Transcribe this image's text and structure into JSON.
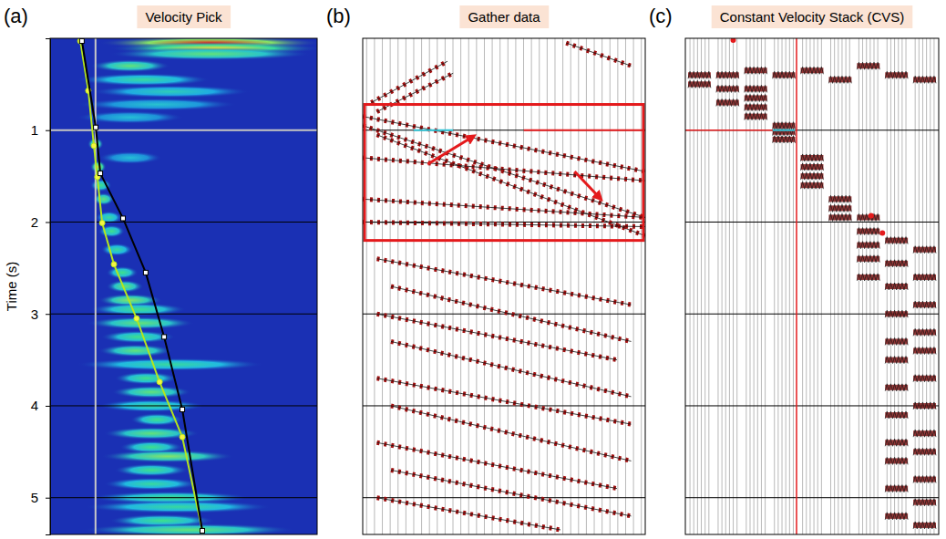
{
  "chart_data": [
    {
      "type": "heatmap",
      "panel_label": "(a)",
      "title": "Velocity Pick",
      "y_label": "Time (s)",
      "xlim": [
        0,
        1
      ],
      "ylim": [
        0,
        5.4
      ],
      "yticks": [
        1,
        2,
        3,
        4,
        5
      ],
      "tick_labels": "y",
      "grid": true,
      "semblance": {
        "time": [
          0.05,
          0.11,
          0.17,
          0.3,
          0.45,
          0.58,
          0.72,
          0.86,
          1.15,
          1.3,
          1.4,
          1.6,
          1.75,
          1.95,
          2.1,
          2.3,
          2.55,
          2.7,
          2.85,
          2.95,
          3.1,
          3.25,
          3.4,
          3.55,
          3.7,
          3.85,
          4.0,
          4.15,
          4.3,
          4.45,
          4.55,
          4.7,
          4.85,
          5.0,
          5.1,
          5.25,
          5.35
        ],
        "velocity": [
          0.6,
          0.62,
          0.6,
          0.3,
          0.35,
          0.45,
          0.4,
          0.3,
          0.17,
          0.3,
          0.18,
          0.19,
          0.2,
          0.22,
          0.23,
          0.25,
          0.27,
          0.28,
          0.3,
          0.33,
          0.34,
          0.33,
          0.32,
          0.45,
          0.36,
          0.38,
          0.38,
          0.4,
          0.38,
          0.38,
          0.44,
          0.38,
          0.38,
          0.45,
          0.48,
          0.42,
          0.52
        ],
        "spread": [
          0.42,
          0.4,
          0.38,
          0.15,
          0.25,
          0.3,
          0.3,
          0.2,
          0.03,
          0.12,
          0.03,
          0.04,
          0.04,
          0.05,
          0.05,
          0.06,
          0.06,
          0.07,
          0.12,
          0.18,
          0.2,
          0.14,
          0.14,
          0.35,
          0.12,
          0.15,
          0.2,
          0.1,
          0.18,
          0.12,
          0.25,
          0.14,
          0.18,
          0.3,
          0.35,
          0.2,
          0.4
        ],
        "value": [
          1.0,
          0.75,
          0.55,
          0.55,
          0.45,
          0.38,
          0.32,
          0.3,
          0.6,
          0.3,
          0.7,
          0.5,
          0.55,
          0.45,
          0.5,
          0.45,
          0.5,
          0.55,
          0.6,
          0.5,
          0.55,
          0.5,
          0.55,
          0.45,
          0.5,
          0.55,
          0.45,
          0.5,
          0.55,
          0.5,
          0.6,
          0.5,
          0.45,
          0.5,
          0.45,
          0.5,
          0.55
        ]
      },
      "color_range": [
        0,
        1
      ],
      "series": [
        {
          "type": "line",
          "color": "#b5e61d",
          "marker": "circle",
          "x": [
            0.113,
            0.143,
            0.164,
            0.177,
            0.195,
            0.239,
            0.324,
            0.41,
            0.495,
            0.57
          ],
          "values": [
            0.03,
            0.57,
            1.17,
            1.51,
            2.01,
            2.46,
            3.05,
            3.74,
            4.34,
            5.36
          ]
        },
        {
          "type": "line",
          "color": "#000000",
          "marker": "square",
          "x": [
            0.119,
            0.171,
            0.188,
            0.273,
            0.358,
            0.427,
            0.495,
            0.57
          ],
          "values": [
            0.03,
            0.97,
            1.47,
            1.96,
            2.55,
            3.25,
            4.04,
            5.36
          ]
        }
      ],
      "cursor": {
        "x": 0.17,
        "values": 1.0
      }
    },
    {
      "type": "wiggle",
      "panel_label": "(b)",
      "title": "Gather data",
      "xlim": [
        0,
        1
      ],
      "ylim": [
        0,
        5.4
      ],
      "yticks": [
        1,
        2,
        3,
        4,
        5
      ],
      "tick_labels": false,
      "grid": true,
      "events": [
        {
          "x": [
            0.03,
            0.3
          ],
          "values": [
            0.7,
            0.25
          ]
        },
        {
          "x": [
            0.05,
            0.32
          ],
          "values": [
            0.8,
            0.38
          ]
        },
        {
          "x": [
            0.72,
            0.95
          ],
          "values": [
            0.05,
            0.3
          ]
        },
        {
          "x": [
            0.0,
            1.0
          ],
          "values": [
            0.85,
            1.45
          ]
        },
        {
          "x": [
            0.0,
            1.0
          ],
          "values": [
            0.95,
            1.95
          ]
        },
        {
          "x": [
            0.05,
            1.0
          ],
          "values": [
            1.05,
            2.15
          ]
        },
        {
          "x": [
            0.0,
            1.0
          ],
          "values": [
            1.3,
            1.55
          ]
        },
        {
          "x": [
            0.0,
            1.0
          ],
          "values": [
            1.75,
            1.95
          ]
        },
        {
          "x": [
            0.0,
            1.0
          ],
          "values": [
            2.0,
            2.05
          ]
        },
        {
          "x": [
            0.05,
            0.95
          ],
          "values": [
            2.4,
            2.9
          ]
        },
        {
          "x": [
            0.1,
            0.95
          ],
          "values": [
            2.7,
            3.3
          ]
        },
        {
          "x": [
            0.05,
            0.9
          ],
          "values": [
            3.0,
            3.5
          ]
        },
        {
          "x": [
            0.1,
            0.95
          ],
          "values": [
            3.3,
            3.9
          ]
        },
        {
          "x": [
            0.05,
            0.95
          ],
          "values": [
            3.7,
            4.2
          ]
        },
        {
          "x": [
            0.1,
            0.95
          ],
          "values": [
            4.0,
            4.6
          ]
        },
        {
          "x": [
            0.05,
            0.9
          ],
          "values": [
            4.4,
            4.9
          ]
        },
        {
          "x": [
            0.1,
            0.95
          ],
          "values": [
            4.7,
            5.2
          ]
        },
        {
          "x": [
            0.05,
            0.7
          ],
          "values": [
            5.0,
            5.35
          ]
        }
      ],
      "highlight": {
        "values": [
          0.72,
          2.2
        ]
      },
      "arrows": [
        {
          "x": [
            0.23,
            0.39
          ],
          "values": [
            1.37,
            1.07
          ]
        },
        {
          "x": [
            0.75,
            0.84
          ],
          "values": [
            1.45,
            1.74
          ]
        }
      ],
      "picks": [
        {
          "color": "#2ec4d6",
          "x": [
            0.18,
            0.32
          ],
          "values": [
            1.0,
            1.0
          ]
        },
        {
          "color": "#e41a1c",
          "x": [
            0.57,
            1.0
          ],
          "values": [
            1.0,
            1.0
          ]
        }
      ]
    },
    {
      "type": "cvs",
      "panel_label": "(c)",
      "title": "Constant Velocity Stack (CVS)",
      "xlim": [
        0,
        9
      ],
      "ylim": [
        0,
        5.4
      ],
      "yticks": [
        1,
        2,
        3,
        4,
        5
      ],
      "tick_labels": false,
      "grid": true,
      "events": {
        "x": [
          0.5,
          1.5,
          2.5,
          3.5,
          4.5,
          5.5,
          6.5,
          7.5,
          8.5,
          0.5,
          1.5,
          1.5,
          2.5,
          2.5,
          2.5,
          2.5,
          3.5,
          3.5,
          3.5,
          4.5,
          4.5,
          4.5,
          4.5,
          5.5,
          5.5,
          5.5,
          6.5,
          6.5,
          6.5,
          6.5,
          6.5,
          7.5,
          7.5,
          7.5,
          7.5,
          7.5,
          7.5,
          7.5,
          7.5,
          7.5,
          7.5,
          7.5,
          7.5,
          8.5,
          8.5,
          8.5,
          8.5,
          8.5,
          8.5,
          8.5,
          8.5,
          8.5,
          8.5,
          8.5,
          8.5
        ],
        "values": [
          0.4,
          0.4,
          0.35,
          0.4,
          0.35,
          0.45,
          0.3,
          0.4,
          0.45,
          0.5,
          0.55,
          0.7,
          0.55,
          0.65,
          0.75,
          0.85,
          0.95,
          1.02,
          1.1,
          1.3,
          1.4,
          1.5,
          1.6,
          1.75,
          1.85,
          1.95,
          1.95,
          2.1,
          2.25,
          2.4,
          2.6,
          2.2,
          2.45,
          2.7,
          3.0,
          3.3,
          3.5,
          3.8,
          4.1,
          4.4,
          4.6,
          4.9,
          5.2,
          2.3,
          2.6,
          2.9,
          3.2,
          3.4,
          3.7,
          4.0,
          4.3,
          4.5,
          4.8,
          5.05,
          5.3
        ]
      },
      "picks": [
        {
          "color": "#2ec4d6",
          "x": [
            3.1,
            3.9
          ],
          "values": [
            1.0,
            1.0
          ]
        }
      ],
      "cursor": {
        "x": 3.95,
        "values": 1.0
      },
      "dots": {
        "x": [
          1.7,
          6.6,
          7.0
        ],
        "values": [
          0.02,
          1.93,
          2.12
        ]
      }
    }
  ]
}
